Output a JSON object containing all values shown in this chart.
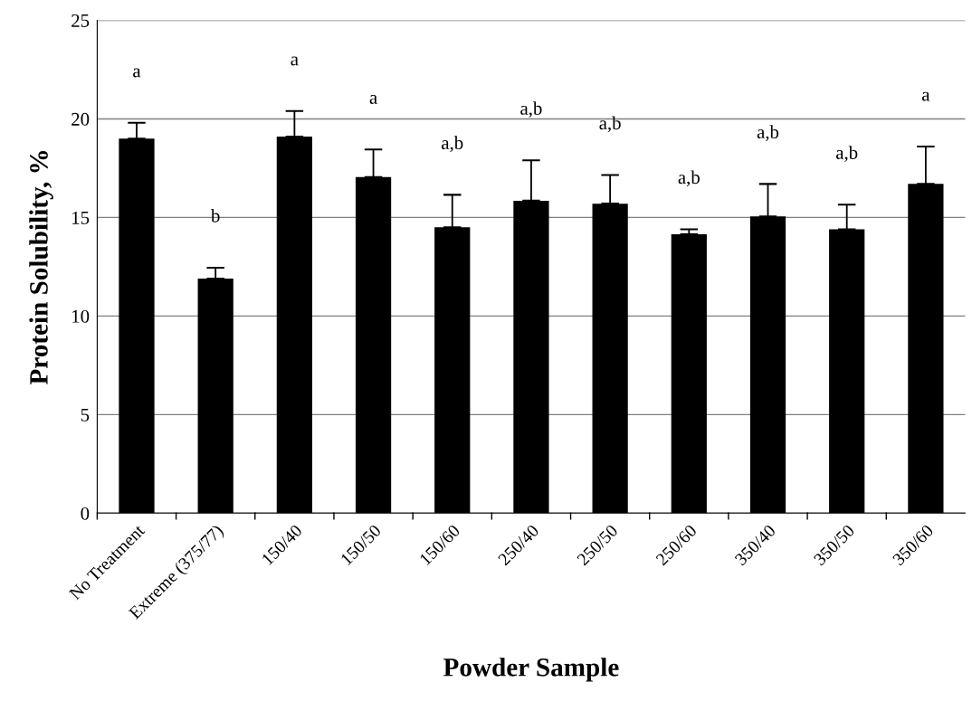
{
  "chart_data": {
    "type": "bar",
    "xlabel": "Powder Sample",
    "ylabel": "Protein Solubility, %",
    "categories": [
      "No Treatment",
      "Extreme (375/77)",
      "150/40",
      "150/50",
      "150/60",
      "250/40",
      "250/50",
      "250/60",
      "350/40",
      "350/50",
      "350/60"
    ],
    "values": [
      19.0,
      11.9,
      19.1,
      17.05,
      14.5,
      15.85,
      15.7,
      14.15,
      15.05,
      14.4,
      16.7
    ],
    "errors": [
      [
        19.0,
        19.8
      ],
      [
        11.9,
        12.45
      ],
      [
        19.1,
        20.4
      ],
      [
        17.05,
        18.45
      ],
      [
        14.5,
        16.15
      ],
      [
        15.85,
        17.9
      ],
      [
        15.7,
        17.15
      ],
      [
        14.15,
        14.4
      ],
      [
        15.05,
        16.7
      ],
      [
        14.4,
        15.65
      ],
      [
        16.7,
        18.6
      ]
    ],
    "color": "#000000",
    "ylim": [
      0,
      25
    ],
    "yticks": [
      0,
      5,
      10,
      15,
      20,
      25
    ],
    "grid": "y",
    "annotations": [
      "a",
      "b",
      "a",
      "a",
      "a,b",
      "a,b",
      "a,b",
      "a,b",
      "a,b",
      "a,b",
      "a"
    ]
  }
}
